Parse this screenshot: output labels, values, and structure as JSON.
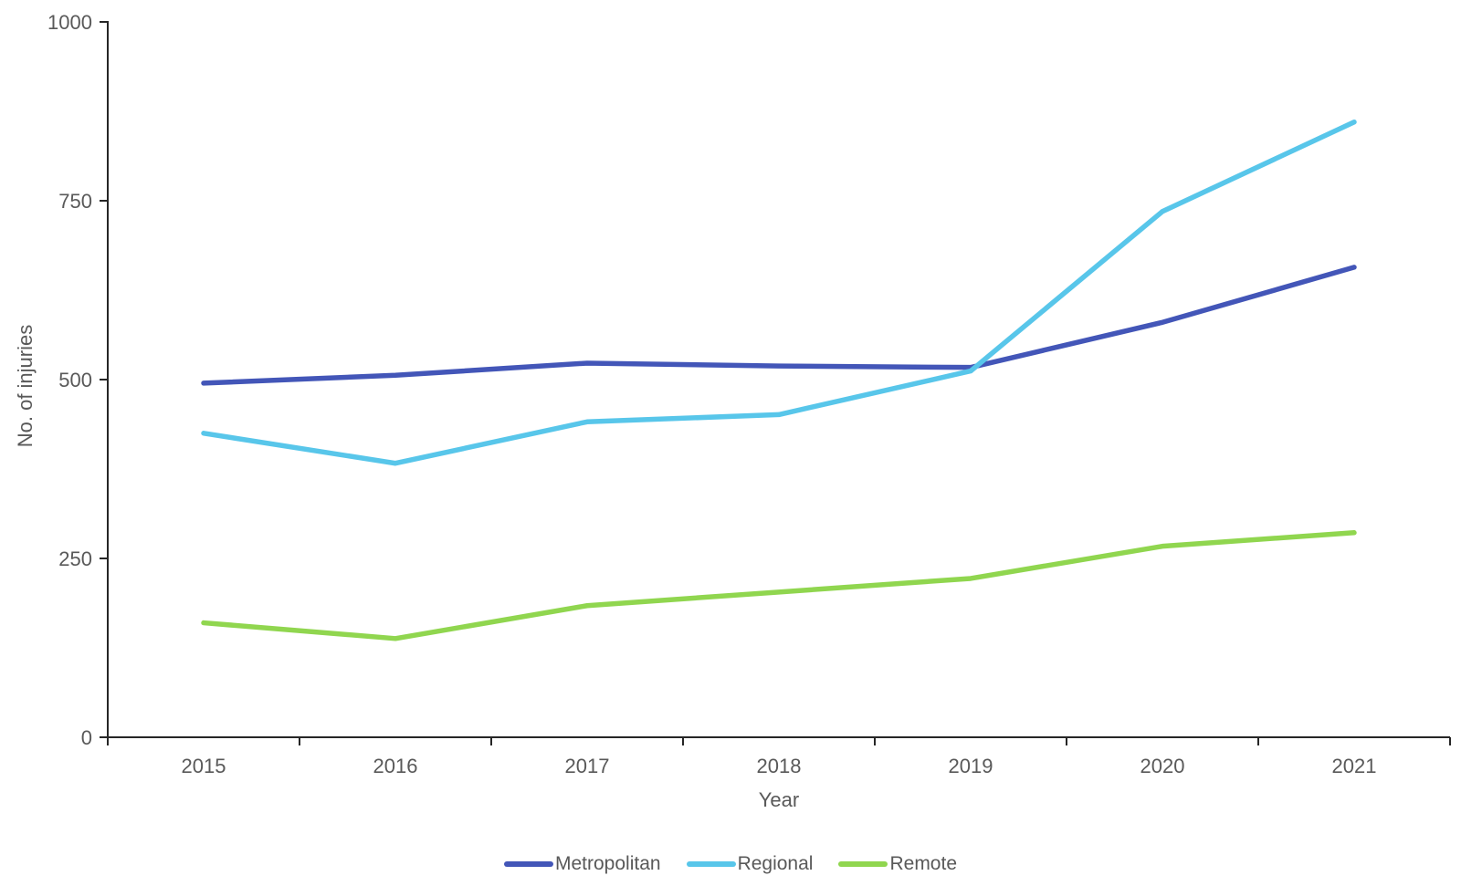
{
  "chart_data": {
    "type": "line",
    "title": "",
    "xlabel": "Year",
    "ylabel": "No. of injuries",
    "categories": [
      "2015",
      "2016",
      "2017",
      "2018",
      "2019",
      "2020",
      "2021"
    ],
    "series": [
      {
        "name": "Metropolitan",
        "color": "#4356b8",
        "values": [
          495,
          506,
          523,
          519,
          517,
          580,
          657
        ]
      },
      {
        "name": "Regional",
        "color": "#58c6ea",
        "values": [
          425,
          383,
          441,
          451,
          512,
          735,
          860
        ]
      },
      {
        "name": "Remote",
        "color": "#90d64f",
        "values": [
          160,
          138,
          184,
          203,
          222,
          267,
          286
        ]
      }
    ],
    "ylim": [
      0,
      1000
    ],
    "yticks": [
      0,
      250,
      500,
      750,
      1000
    ],
    "grid": false,
    "legend_position": "bottom"
  },
  "style": {
    "axis_color": "#262626",
    "text_color": "#595959"
  }
}
